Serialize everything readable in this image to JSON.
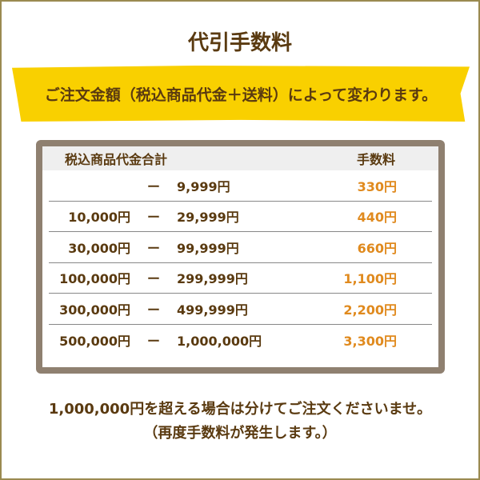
{
  "title": "代引手数料",
  "subtitle": "ご注文金額（税込商品代金＋送料）によって変わります。",
  "table": {
    "headers": [
      "税込商品代金合計",
      "手数料"
    ],
    "rows": [
      {
        "from": "",
        "dash": "ー",
        "to": "9,999円",
        "fee": "330円"
      },
      {
        "from": "10,000円",
        "dash": "ー",
        "to": "29,999円",
        "fee": "440円"
      },
      {
        "from": "30,000円",
        "dash": "ー",
        "to": "99,999円",
        "fee": "660円"
      },
      {
        "from": "100,000円",
        "dash": "ー",
        "to": "299,999円",
        "fee": "1,100円"
      },
      {
        "from": "300,000円",
        "dash": "ー",
        "to": "499,999円",
        "fee": "2,200円"
      },
      {
        "from": "500,000円",
        "dash": "ー",
        "to": "1,000,000円",
        "fee": "3,300円"
      }
    ]
  },
  "notes": [
    "1,000,000円を超える場合は分けてご注文くださいませ。",
    "（再度手数料が発生します。）"
  ],
  "colors": {
    "text": "#5a3a10",
    "fee": "#e08a1e",
    "band": "#f9d000",
    "table_border": "#8f8070"
  }
}
